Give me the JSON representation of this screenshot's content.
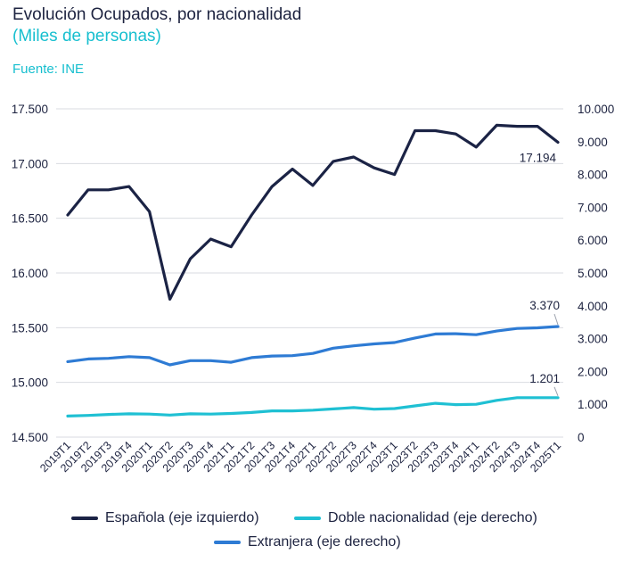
{
  "title": "Evolución Ocupados, por nacionalidad",
  "subtitle": "(Miles de personas)",
  "source": "Fuente: INE",
  "chart_data": {
    "type": "line",
    "categories": [
      "2019T1",
      "2019T2",
      "2019T3",
      "2019T4",
      "2020T1",
      "2020T2",
      "2020T3",
      "2020T4",
      "2021T1",
      "2021T2",
      "2021T3",
      "2021T4",
      "2022T1",
      "2022T2",
      "2022T3",
      "2022T4",
      "2023T1",
      "2023T2",
      "2023T3",
      "2023T4",
      "2024T1",
      "2024T2",
      "2024T3",
      "2024T4",
      "2025T1"
    ],
    "left_axis": {
      "ticks": [
        "14.500",
        "15.000",
        "15.500",
        "16.000",
        "16.500",
        "17.000",
        "17.500"
      ],
      "ylim": [
        14500,
        17500
      ]
    },
    "right_axis": {
      "ticks": [
        "0",
        "1.000",
        "2.000",
        "3.000",
        "4.000",
        "5.000",
        "6.000",
        "7.000",
        "8.000",
        "9.000",
        "10.000"
      ],
      "ylim": [
        0,
        10000
      ]
    },
    "series": [
      {
        "name": "Española (eje izquierdo)",
        "axis": "left",
        "color": "#1b2345",
        "values": [
          16530,
          16760,
          16760,
          16790,
          16560,
          15760,
          16130,
          16310,
          16240,
          16530,
          16790,
          16950,
          16800,
          17020,
          17060,
          16960,
          16900,
          17300,
          17300,
          17270,
          17150,
          17350,
          17340,
          17340,
          17194
        ],
        "end_label": "17.194"
      },
      {
        "name": "Doble nacionalidad (eje derecho)",
        "axis": "right",
        "color": "#1fc0d3",
        "values": [
          640,
          660,
          690,
          710,
          700,
          670,
          710,
          700,
          720,
          750,
          800,
          800,
          820,
          860,
          900,
          850,
          870,
          950,
          1030,
          990,
          1000,
          1120,
          1200,
          1200,
          1201
        ],
        "end_label": "1.201"
      },
      {
        "name": "Extranjera (eje derecho)",
        "axis": "right",
        "color": "#2e7bd4",
        "values": [
          2300,
          2380,
          2400,
          2450,
          2420,
          2200,
          2330,
          2330,
          2280,
          2420,
          2470,
          2480,
          2550,
          2710,
          2780,
          2840,
          2880,
          3020,
          3140,
          3150,
          3120,
          3230,
          3310,
          3330,
          3370
        ],
        "end_label": "3.370"
      }
    ],
    "grid": "horizontal",
    "legend_position": "bottom"
  }
}
